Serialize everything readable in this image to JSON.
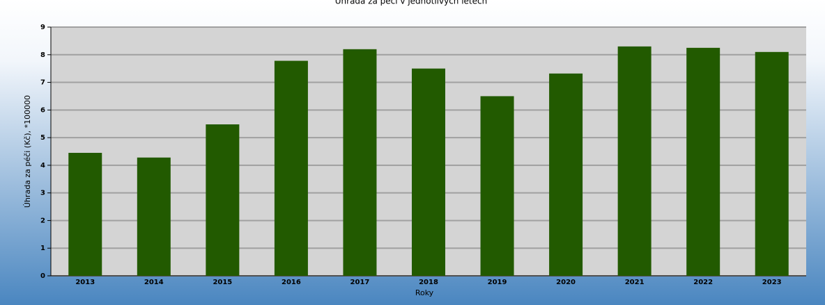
{
  "chart_data": {
    "type": "bar",
    "title": "Úhrada za péči v jednotlivých letech",
    "x_label": "Roky",
    "y_label": "Úhrada za péči (Kč), *100000",
    "categories": [
      "2013",
      "2014",
      "2015",
      "2016",
      "2017",
      "2018",
      "2019",
      "2020",
      "2021",
      "2022",
      "2023"
    ],
    "values": [
      4.45,
      4.28,
      5.48,
      7.78,
      8.2,
      7.5,
      6.5,
      7.32,
      8.3,
      8.25,
      8.1
    ],
    "color": "#225a00",
    "ylim": [
      0,
      9
    ],
    "yticks": [
      0,
      1,
      2,
      3,
      4,
      5,
      6,
      7,
      8,
      9
    ],
    "grid": true
  }
}
